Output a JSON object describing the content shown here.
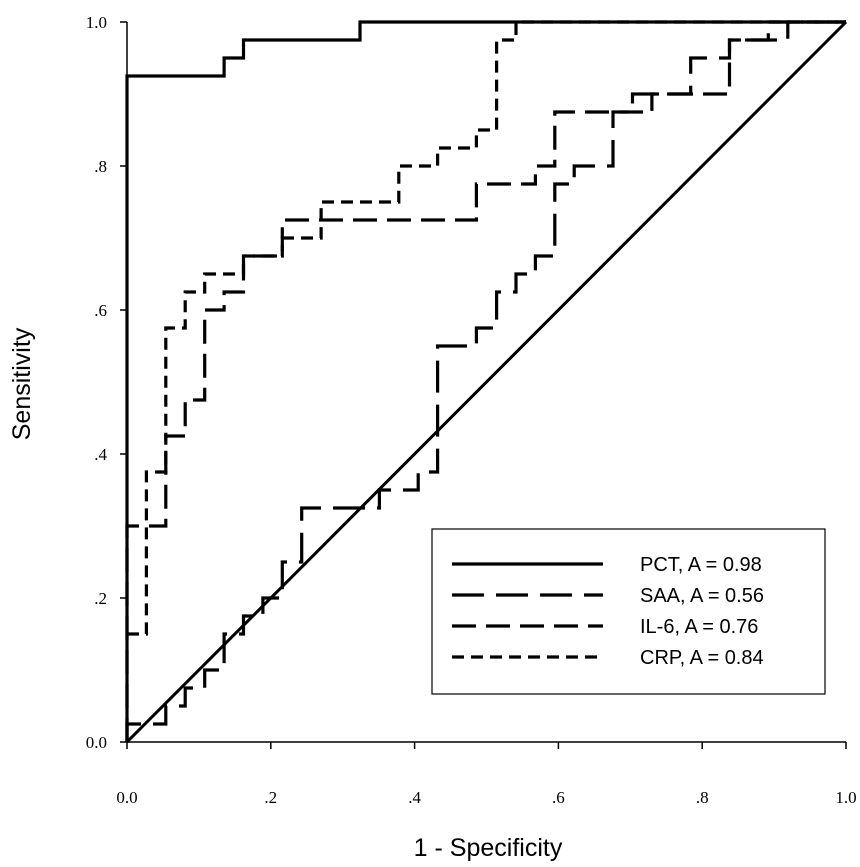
{
  "chart_data": {
    "type": "line",
    "title": "",
    "xlabel": "1 - Specificity",
    "ylabel": "Sensitivity",
    "xlim": [
      0,
      1
    ],
    "ylim": [
      0,
      1
    ],
    "x_ticks": [
      {
        "value": 0,
        "label": "0.0"
      },
      {
        "value": 0.2,
        "label": ".2"
      },
      {
        "value": 0.4,
        "label": ".4"
      },
      {
        "value": 0.6,
        "label": ".6"
      },
      {
        "value": 0.8,
        "label": ".8"
      },
      {
        "value": 1,
        "label": "1.0"
      }
    ],
    "y_ticks": [
      {
        "value": 0,
        "label": "0.0"
      },
      {
        "value": 0.2,
        "label": ".2"
      },
      {
        "value": 0.4,
        "label": ".4"
      },
      {
        "value": 0.6,
        "label": ".6"
      },
      {
        "value": 0.8,
        "label": ".8"
      },
      {
        "value": 1,
        "label": "1.0"
      }
    ],
    "grid": false,
    "legend_position": "bottom-right",
    "reference_line": {
      "x": [
        0,
        1
      ],
      "y": [
        0,
        1
      ],
      "color": "#000000"
    },
    "series": [
      {
        "name": "PCT, A = 0.98",
        "dash": "solid",
        "color": "#000000",
        "x": [
          0,
          0,
          0.135,
          0.135,
          0.162,
          0.162,
          0.324,
          0.324,
          1
        ],
        "y": [
          0,
          0.925,
          0.925,
          0.95,
          0.95,
          0.975,
          0.975,
          1,
          1
        ]
      },
      {
        "name": "SAA, A = 0.56",
        "dash": "long",
        "color": "#000000",
        "x": [
          0,
          0,
          0.054,
          0.054,
          0.081,
          0.081,
          0.108,
          0.108,
          0.135,
          0.135,
          0.162,
          0.162,
          0.189,
          0.189,
          0.216,
          0.216,
          0.243,
          0.243,
          0.351,
          0.351,
          0.405,
          0.405,
          0.432,
          0.432,
          0.486,
          0.486,
          0.514,
          0.514,
          0.541,
          0.541,
          0.568,
          0.568,
          0.595,
          0.595,
          0.622,
          0.622,
          0.676,
          0.676,
          0.703,
          0.703,
          0.784,
          0.784,
          0.838,
          0.838,
          0.919,
          0.919,
          1
        ],
        "y": [
          0,
          0.025,
          0.025,
          0.05,
          0.05,
          0.075,
          0.075,
          0.1,
          0.1,
          0.15,
          0.15,
          0.175,
          0.175,
          0.2,
          0.2,
          0.25,
          0.25,
          0.325,
          0.325,
          0.35,
          0.35,
          0.375,
          0.375,
          0.55,
          0.55,
          0.575,
          0.575,
          0.625,
          0.625,
          0.65,
          0.65,
          0.675,
          0.675,
          0.775,
          0.775,
          0.8,
          0.8,
          0.875,
          0.875,
          0.9,
          0.9,
          0.95,
          0.95,
          0.975,
          0.975,
          1,
          1
        ]
      },
      {
        "name": "IL-6, A = 0.76",
        "dash": "medium",
        "color": "#000000",
        "x": [
          0,
          0,
          0.054,
          0.054,
          0.081,
          0.081,
          0.108,
          0.108,
          0.135,
          0.135,
          0.162,
          0.162,
          0.216,
          0.216,
          0.486,
          0.486,
          0.568,
          0.568,
          0.595,
          0.595,
          0.73,
          0.73,
          0.784,
          0.784,
          0.838,
          0.838,
          0.892,
          0.892,
          1
        ],
        "y": [
          0,
          0.3,
          0.3,
          0.425,
          0.425,
          0.475,
          0.475,
          0.6,
          0.6,
          0.625,
          0.625,
          0.675,
          0.675,
          0.725,
          0.725,
          0.775,
          0.775,
          0.8,
          0.8,
          0.875,
          0.875,
          0.9,
          0.9,
          0.9,
          0.9,
          0.975,
          0.975,
          1,
          1
        ]
      },
      {
        "name": "CRP, A = 0.84",
        "dash": "short",
        "color": "#000000",
        "x": [
          0,
          0.027,
          0.027,
          0.054,
          0.054,
          0.081,
          0.081,
          0.108,
          0.108,
          0.162,
          0.162,
          0.216,
          0.216,
          0.27,
          0.27,
          0.378,
          0.378,
          0.432,
          0.432,
          0.486,
          0.486,
          0.514,
          0.514,
          0.541,
          0.541,
          0.568,
          0.568,
          1
        ],
        "y": [
          0.15,
          0.15,
          0.375,
          0.375,
          0.575,
          0.575,
          0.625,
          0.625,
          0.65,
          0.65,
          0.675,
          0.675,
          0.7,
          0.7,
          0.75,
          0.75,
          0.8,
          0.8,
          0.825,
          0.825,
          0.85,
          0.85,
          0.975,
          0.975,
          1,
          1,
          1,
          1
        ]
      }
    ]
  }
}
